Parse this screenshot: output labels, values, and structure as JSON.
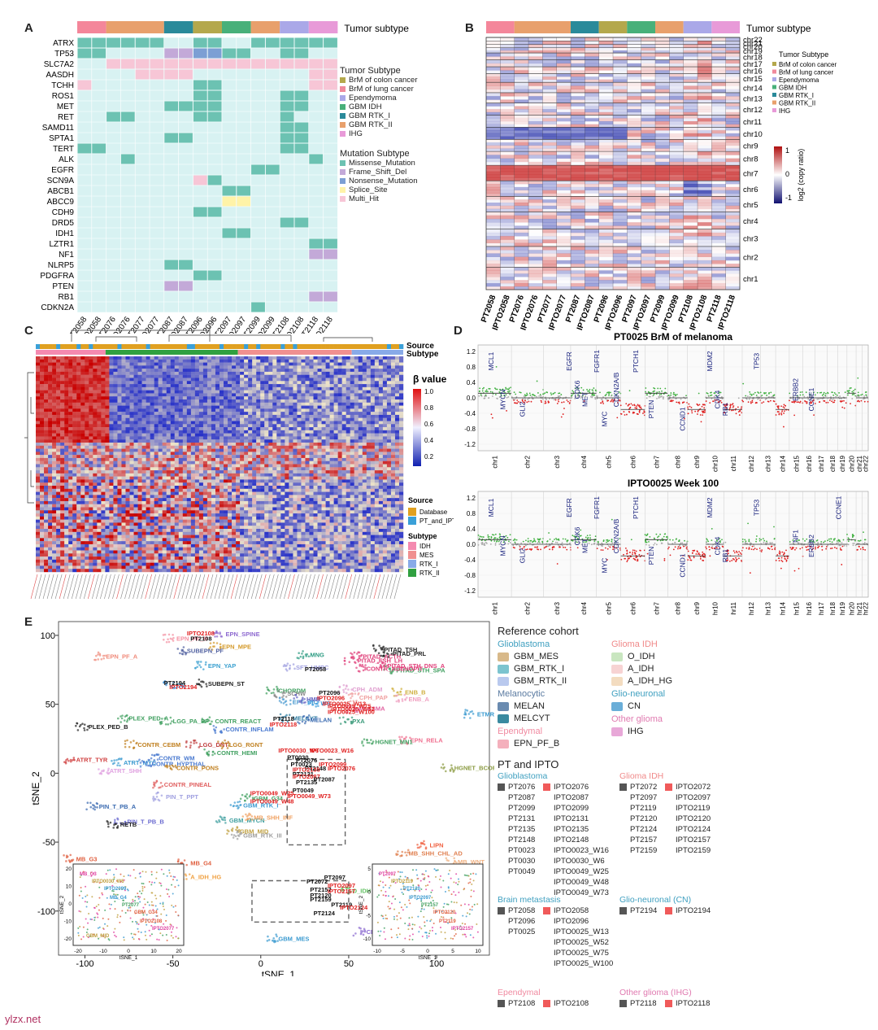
{
  "panels": {
    "a": {
      "label": "A",
      "subtype_header": "Tumor subtype",
      "genes": [
        "ATRX",
        "TP53",
        "SLC7A2",
        "AASDH",
        "TCHH",
        "ROS1",
        "MET",
        "RET",
        "SAMD11",
        "SPTA1",
        "TERT",
        "ALK",
        "EGFR",
        "SCN9A",
        "ABCB1",
        "ABCC9",
        "CDH9",
        "DRD5",
        "IDH1",
        "LZTR1",
        "NF1",
        "NLRP5",
        "PDGFRA",
        "PTEN",
        "RB1",
        "CDKN2A"
      ],
      "samples": [
        "PT2058",
        "IPTO2058",
        "PT2076",
        "IPTO2076",
        "PT2077",
        "IPTO2077",
        "PT2087",
        "IPTO2087",
        "PT2096",
        "IPTO2096",
        "PT2097",
        "IPTO2097",
        "PT2099",
        "IPTO2099",
        "PT2108",
        "IPTO2108",
        "PT2118",
        "IPTO2118"
      ],
      "legend_tumor_title": "Tumor Subtype",
      "legend_tumor": [
        "BrM of colon cancer",
        "BrM of lung cancer",
        "Ependymoma",
        "GBM IDH",
        "GBM RTK_I",
        "GBM RTK_II",
        "IHG"
      ],
      "legend_mut_title": "Mutation Subtype",
      "legend_mut": [
        "Missense_Mutation",
        "Frame_Shift_Del",
        "Nonsense_Mutation",
        "Splice_Site",
        "Multi_Hit"
      ]
    },
    "b": {
      "label": "B",
      "subtype_header": "Tumor subtype",
      "chroms": [
        "chr22",
        "chr21",
        "chr20",
        "chr19",
        "chr18",
        "chr17",
        "chr16",
        "chr15",
        "chr14",
        "chr13",
        "chr12",
        "chr11",
        "chr10",
        "chr9",
        "chr8",
        "chr7",
        "chr6",
        "chr5",
        "chr4",
        "chr3",
        "chr2",
        "chr1"
      ],
      "samples": [
        "PT2058",
        "IPTO2058",
        "PT2076",
        "IPTO2076",
        "PT2077",
        "IPTO2077",
        "PT2087",
        "IPTO2087",
        "PT2096",
        "IPTO2096",
        "PT2097",
        "IPTO2097",
        "PT2099",
        "IPTO2099",
        "PT2108",
        "IPTO2108",
        "PT2118",
        "IPTO2118"
      ],
      "legend_title": "Tumor Subtype",
      "legend": [
        "BrM of colon cancer",
        "BrM of lung cancer",
        "Ependymoma",
        "GBM IDH",
        "GBM RTK_I",
        "GBM RTK_II",
        "IHG"
      ],
      "scale_label": "log2 (copy ratio)",
      "scale_ticks": [
        "1",
        "0",
        "-1"
      ]
    },
    "c": {
      "label": "C",
      "source_label": "Source",
      "subtype_label": "Subtype",
      "beta_title": "β value",
      "beta_ticks": [
        "1.0",
        "0.8",
        "0.6",
        "0.4",
        "0.2"
      ],
      "legend_source_title": "Source",
      "legend_source": [
        "Database",
        "PT_and_IPTO"
      ],
      "legend_subtype_title": "Subtype",
      "legend_subtype": [
        "IDH",
        "MES",
        "RTK_I",
        "RTK_II"
      ]
    },
    "d": {
      "label": "D",
      "plots": [
        {
          "title": "PT0025 BrM of melanoma",
          "genes": [
            "MCL1",
            "MYCN",
            "GLI2",
            "EGFR",
            "CDK6",
            "MET",
            "FGFR1",
            "MYC",
            "CDKN2A/B",
            "PTCH1",
            "PTEN",
            "CCND1",
            "MDM2",
            "CDK4",
            "RB1",
            "TP53",
            "ERBB2",
            "CCNE1"
          ]
        },
        {
          "title": "IPTO0025 Week 100",
          "genes": [
            "MCL1",
            "MYCN",
            "GLI2",
            "EGFR",
            "CDK6",
            "MET",
            "FGFR1",
            "MYC",
            "CDKN2A/B",
            "PTCH1",
            "PTEN",
            "CCND1",
            "MDM2",
            "CDK4",
            "RB1",
            "TP53",
            "NF1",
            "ERBB2",
            "CCNE1"
          ]
        }
      ],
      "yticks": [
        "1.2",
        "1.0",
        "0.8",
        "0.6",
        "0.4",
        "0.2",
        "0.0",
        "-0.2",
        "-0.4",
        "-0.6",
        "-0.8",
        "-1.0",
        "-1.2"
      ],
      "chroms": [
        "chr1",
        "chr2",
        "chr3",
        "chr4",
        "chr5",
        "chr6",
        "chr7",
        "chr8",
        "chr9",
        "chr10",
        "chr11",
        "chr12",
        "chr13",
        "chr14",
        "chr15",
        "chr16",
        "chr17",
        "chr18",
        "chr19",
        "chr20",
        "chr21",
        "chr22"
      ]
    },
    "e": {
      "label": "E",
      "xlabel": "tSNE_1",
      "ylabel": "tSNE_2",
      "xticks": [
        "-100",
        "-50",
        "0",
        "50",
        "100"
      ],
      "yticks": [
        "100",
        "50",
        "0",
        "-50",
        "-100"
      ],
      "clusters": [
        {
          "name": "EPN_SPINE",
          "color": "#8e6ad0"
        },
        {
          "name": "EPN_PF_B",
          "color": "#f48fa0"
        },
        {
          "name": "EPN_MPE",
          "color": "#d49a2a"
        },
        {
          "name": "EPN_PF_A",
          "color": "#f08a7a"
        },
        {
          "name": "SUBEPN_PF",
          "color": "#5060a0"
        },
        {
          "name": "EPN_YAP",
          "color": "#3aa0d0"
        },
        {
          "name": "EPN_RELA",
          "color": "#f07090"
        },
        {
          "name": "MNG",
          "color": "#2a9a80"
        },
        {
          "name": "PITAD_ACTH",
          "color": "#e0407a"
        },
        {
          "name": "PITAD_TSH",
          "color": "#222"
        },
        {
          "name": "PITAD_FSH_LH",
          "color": "#e0407a"
        },
        {
          "name": "PITAD_PRL",
          "color": "#222"
        },
        {
          "name": "PITAD_STH_DNS_A",
          "color": "#e0407a"
        },
        {
          "name": "PITAD_STH_SPA",
          "color": "#40a060"
        },
        {
          "name": "CONTR_ADENOPIT",
          "color": "#e0407a"
        },
        {
          "name": "SFT_HMPC",
          "color": "#a0a0e0"
        },
        {
          "name": "CN",
          "color": "#3a8ad0"
        },
        {
          "name": "SUBEPN_ST",
          "color": "#222"
        },
        {
          "name": "CHORDM",
          "color": "#40a060"
        },
        {
          "name": "CPH_ADM",
          "color": "#e0a0d0"
        },
        {
          "name": "CPH_PAP",
          "color": "#f0a0a0"
        },
        {
          "name": "ENB_B",
          "color": "#d0b040"
        },
        {
          "name": "ENB_A",
          "color": "#f0a0c0"
        },
        {
          "name": "SCHW",
          "color": "#888"
        },
        {
          "name": "EFT_CIC",
          "color": "#4a9ad0"
        },
        {
          "name": "HMB",
          "color": "#6060c0"
        },
        {
          "name": "WS",
          "color": "#40a0e0"
        },
        {
          "name": "PLASMA",
          "color": "#e060a0"
        },
        {
          "name": "ETMR",
          "color": "#3a9ad0"
        },
        {
          "name": "MELCYT",
          "color": "#2a7aa0"
        },
        {
          "name": "MELAN",
          "color": "#3a6ab0"
        },
        {
          "name": "PXA",
          "color": "#3a9a7a"
        },
        {
          "name": "PLEX_PED_A",
          "color": "#40a060"
        },
        {
          "name": "PLEX_PED_B",
          "color": "#222"
        },
        {
          "name": "LGG_PA_PF",
          "color": "#40a060"
        },
        {
          "name": "CONTR_REACT",
          "color": "#40a060"
        },
        {
          "name": "CONTR_INFLAM",
          "color": "#4a7ad0"
        },
        {
          "name": "CONTR_CEBM",
          "color": "#c08020"
        },
        {
          "name": "LGG_DNT",
          "color": "#c04040"
        },
        {
          "name": "LGG_RGNT",
          "color": "#c08020"
        },
        {
          "name": "ATRT_TYR",
          "color": "#d04040"
        },
        {
          "name": "ATRT_MYC",
          "color": "#3a9ad0"
        },
        {
          "name": "ATRT_SHH",
          "color": "#e0a0e0"
        },
        {
          "name": "CONTR_HYPTHAL",
          "color": "#4a7ad0"
        },
        {
          "name": "CONTR_WM",
          "color": "#4a7ad0"
        },
        {
          "name": "CONTR_PONS",
          "color": "#c08020"
        },
        {
          "name": "CONTR_HEMI",
          "color": "#40a060"
        },
        {
          "name": "HGNET_BCOR",
          "color": "#8a9a40"
        },
        {
          "name": "HGNET_MN1",
          "color": "#40a060"
        },
        {
          "name": "CONTR_PINEAL",
          "color": "#e06060"
        },
        {
          "name": "PIN_T_PPT",
          "color": "#a0a0e0"
        },
        {
          "name": "PIN_T_PB_A",
          "color": "#3a6ab0"
        },
        {
          "name": "PIN_T_PB_B",
          "color": "#6a6ad0"
        },
        {
          "name": "RETB",
          "color": "#222"
        },
        {
          "name": "GBM_MYCN",
          "color": "#40a0a0"
        },
        {
          "name": "GBM_MID",
          "color": "#c0a040"
        },
        {
          "name": "GBM_RTK_I",
          "color": "#3a9ad0"
        },
        {
          "name": "GBM_RTK_III",
          "color": "#a0a0a0"
        },
        {
          "name": "GBM_G34",
          "color": "#40a060"
        },
        {
          "name": "MB_SHH_INF",
          "color": "#f0a060"
        },
        {
          "name": "LIPN",
          "color": "#f06040"
        },
        {
          "name": "MB_SHH_CHL_AD",
          "color": "#e08050"
        },
        {
          "name": "MB_WNT",
          "color": "#f0b080"
        },
        {
          "name": "MB_G3",
          "color": "#e06040"
        },
        {
          "name": "MB_G4",
          "color": "#e06040"
        },
        {
          "name": "A_IDH_HG",
          "color": "#f0a040"
        },
        {
          "name": "O_IDH",
          "color": "#60c060"
        },
        {
          "name": "CNS_NB_FOXR2",
          "color": "#8a6ad0"
        },
        {
          "name": "GBM_MES",
          "color": "#3a9ad0"
        }
      ],
      "pt_labels": [
        "IPTO2108",
        "PT2108",
        "PT2194",
        "IPTO2194",
        "PT2058",
        "PT2096",
        "IPTO2096",
        "IPTO0025_W13",
        "IPTO0025_W75",
        "IPTO0025_W52",
        "IPTO0025_W100",
        "PT2118",
        "IPTO2118",
        "IPTO0030_W6",
        "IPTO0023_W16",
        "PT0030",
        "PT2076",
        "PT0023",
        "IPTO2099",
        "IPTO2076",
        "PT2148",
        "IPTO2135",
        "PT2131",
        "IPTO2087",
        "PT2087",
        "PT2135",
        "IPTO0049_W25",
        "IPTO0049_W73",
        "IPTO0049_W48",
        "PT0049",
        "PT2072",
        "PT2097",
        "IPTO2097",
        "IPTO2157",
        "PT2157",
        "PT2120",
        "PT2159",
        "PT2119",
        "IPTO2124",
        "PT2124"
      ],
      "ref_title": "Reference cohort",
      "ref_groups": [
        {
          "title": "Glioblastoma",
          "title_color": "#40a0c0",
          "items": [
            {
              "label": "GBM_MES",
              "color": "#d8b98a"
            },
            {
              "label": "GBM_RTK_I",
              "color": "#7cc4cf"
            },
            {
              "label": "GBM_RTK_II",
              "color": "#b9c9ee"
            }
          ]
        },
        {
          "title": "Melanocytic",
          "title_color": "#5a7aa0",
          "items": [
            {
              "label": "MELAN",
              "color": "#6a8bb0"
            },
            {
              "label": "MELCYT",
              "color": "#3a8aa0"
            }
          ]
        },
        {
          "title": "Ependymal",
          "title_color": "#f08aa0",
          "items": [
            {
              "label": "EPN_PF_B",
              "color": "#f4b0bc"
            }
          ]
        },
        {
          "title": "Glioma IDH",
          "title_color": "#f08a8a",
          "items": [
            {
              "label": "O_IDH",
              "color": "#c9e6c0"
            },
            {
              "label": "A_IDH",
              "color": "#f7d3d3"
            },
            {
              "label": "A_IDH_HG",
              "color": "#f3dcc0"
            }
          ]
        },
        {
          "title": "Glio-neuronal",
          "title_color": "#40a0c0",
          "items": [
            {
              "label": "CN",
              "color": "#6aaed8"
            }
          ]
        },
        {
          "title": "Other glioma",
          "title_color": "#e07ab0",
          "items": [
            {
              "label": "IHG",
              "color": "#e8a8d8"
            }
          ]
        }
      ],
      "pt_title": "PT and IPTO",
      "pt_groups": [
        {
          "title": "Glioblastoma",
          "title_color": "#40a0c0",
          "pt": [
            "PT2076",
            "PT2087",
            "PT2099",
            "PT2131",
            "PT2135",
            "PT2148",
            "PT0023",
            "PT0030",
            "PT0049"
          ],
          "ipto": [
            "IPTO2076",
            "IPTO2087",
            "IPTO2099",
            "IPTO2131",
            "IPTO2135",
            "IPTO2148",
            "IPTO0023_W16",
            "IPTO0030_W6",
            "IPTO0049_W25",
            "IPTO0049_W48",
            "IPTO0049_W73"
          ]
        },
        {
          "title": "Glioma IDH",
          "title_color": "#f08a8a",
          "pt": [
            "PT2072",
            "PT2097",
            "PT2119",
            "PT2120",
            "PT2124",
            "PT2157",
            "PT2159"
          ],
          "ipto": [
            "IPTO2072",
            "IPTO2097",
            "IPTO2119",
            "IPTO2120",
            "IPTO2124",
            "IPTO2157",
            "IPTO2159"
          ]
        },
        {
          "title": "Brain metastasis",
          "title_color": "#40a0c0",
          "pt": [
            "PT2058",
            "PT2096",
            "PT0025"
          ],
          "ipto": [
            "IPTO2058",
            "IPTO2096",
            "IPTO0025_W13",
            "IPTO0025_W52",
            "IPTO0025_W75",
            "IPTO0025_W100"
          ]
        },
        {
          "title": "Glio-neuronal (CN)",
          "title_color": "#40a0c0",
          "pt": [
            "PT2194"
          ],
          "ipto": [
            "IPTO2194"
          ]
        },
        {
          "title": "Ependymal",
          "title_color": "#f08aa0",
          "pt": [
            "PT2108"
          ],
          "ipto": [
            "IPTO2108"
          ]
        },
        {
          "title": "Other glioma (IHG)",
          "title_color": "#e07ab0",
          "pt": [
            "PT2118"
          ],
          "ipto": [
            "IPTO2118"
          ]
        }
      ],
      "inset_left": {
        "xlabel": "tSNE_1",
        "ylabel": "tSNE_2",
        "xticks": [
          "-20",
          "-10",
          "0",
          "10",
          "20"
        ],
        "yticks": [
          "20",
          "10",
          "0",
          "-10",
          "-20"
        ],
        "labels": [
          "MB_G3",
          "MB_G4",
          "IPTO2108",
          "IPTO0030_W6",
          "PT2077",
          "IPTO2077",
          "IPTO2099",
          "GBM_G34",
          "GBM_MID"
        ]
      },
      "inset_right": {
        "xlabel": "tSNE_1",
        "ylabel": "tSNE_2",
        "xticks": [
          "-10",
          "-5",
          "0",
          "5",
          "10"
        ],
        "yticks": [
          "5",
          "0",
          "-5",
          "-10"
        ],
        "labels": [
          "PT2097",
          "IPTO2097",
          "PT2119",
          "IPTO2119",
          "PT2157",
          "IPTO2157",
          "PT2120",
          "IPTO2120"
        ]
      }
    }
  },
  "colors": {
    "mut_missense": "#6cc2b2",
    "mut_frameshift": "#c3a9d8",
    "mut_nonsense": "#7c9fd4",
    "mut_splice": "#fff3a8",
    "mut_multi": "#f7c6d6",
    "heat_bg": "#d8f2f2",
    "pt": "#555",
    "ipto": "#f05a5a"
  },
  "watermark": "ylzx.net"
}
